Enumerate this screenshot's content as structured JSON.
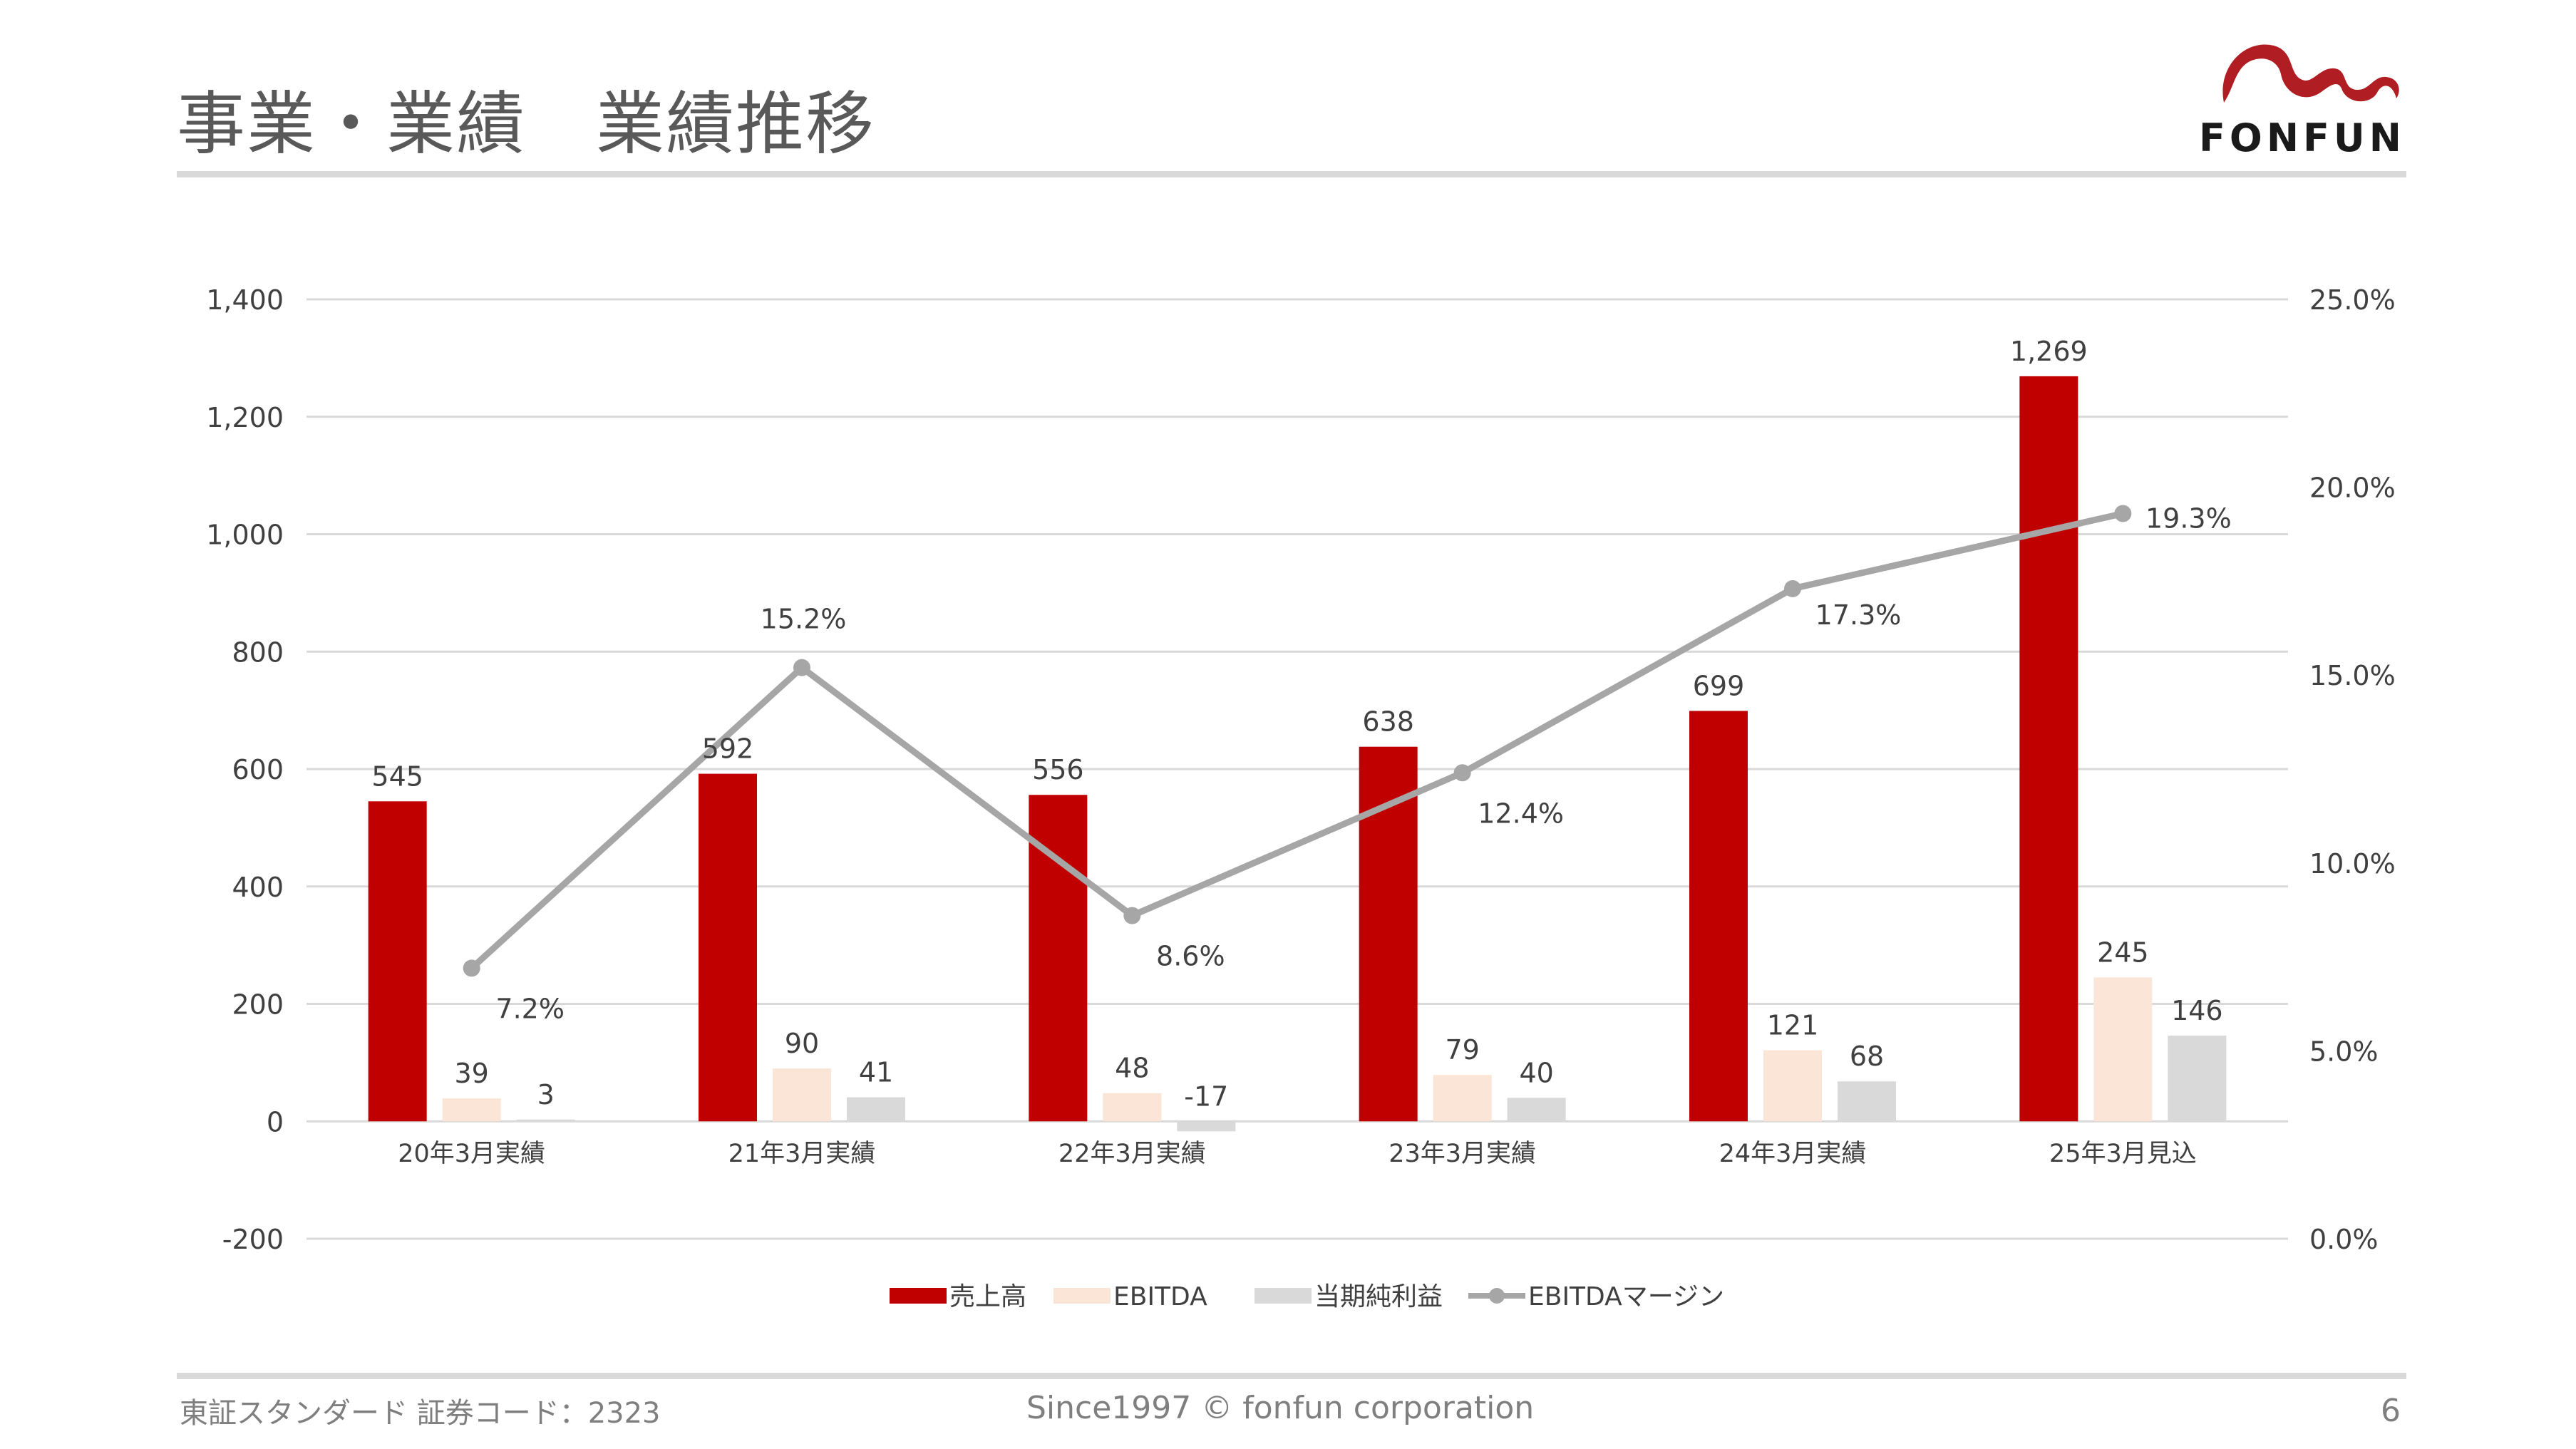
{
  "header": {
    "title": "事業・業績　業績推移",
    "logo_text": "FONFUN"
  },
  "footer": {
    "exchange": "東証スタンダード 証券コード：2323",
    "copyright": "Since1997 © fonfun corporation",
    "page_number": "6"
  },
  "colors": {
    "revenue": "#c00000",
    "ebitda": "#fbe5d6",
    "net_income": "#d9d9d9",
    "margin": "#a6a6a6",
    "logo": "#b01e23"
  },
  "chart_data": {
    "type": "bar",
    "categories": [
      "20年3月実績",
      "21年3月実績",
      "22年3月実績",
      "23年3月実績",
      "24年3月実績",
      "25年3月見込"
    ],
    "series": [
      {
        "name": "売上高",
        "type": "bar",
        "axis": "left",
        "values": [
          545,
          592,
          556,
          638,
          699,
          1269
        ],
        "labels": [
          "545",
          "592",
          "556",
          "638",
          "699",
          "1,269"
        ]
      },
      {
        "name": "EBITDA",
        "type": "bar",
        "axis": "left",
        "values": [
          39,
          90,
          48,
          79,
          121,
          245
        ],
        "labels": [
          "39",
          "90",
          "48",
          "79",
          "121",
          "245"
        ]
      },
      {
        "name": "当期純利益",
        "type": "bar",
        "axis": "left",
        "values": [
          3,
          41,
          -17,
          40,
          68,
          146
        ],
        "labels": [
          "3",
          "41",
          "-17",
          "40",
          "68",
          "146"
        ]
      },
      {
        "name": "EBITDAマージン",
        "type": "line",
        "axis": "right",
        "values": [
          7.2,
          15.2,
          8.6,
          12.4,
          17.3,
          19.3
        ],
        "labels": [
          "7.2%",
          "15.2%",
          "8.6%",
          "12.4%",
          "17.3%",
          "19.3%"
        ]
      }
    ],
    "y_left": {
      "min": -200,
      "max": 1400,
      "ticks": [
        -200,
        0,
        200,
        400,
        600,
        800,
        1000,
        1200,
        1400
      ],
      "tick_labels": [
        "-200",
        "0",
        "200",
        "400",
        "600",
        "800",
        "1,000",
        "1,200",
        "1,400"
      ]
    },
    "y_right": {
      "min": 0,
      "max": 25,
      "ticks": [
        0,
        5,
        10,
        15,
        20,
        25
      ],
      "tick_labels": [
        "0.0%",
        "5.0%",
        "10.0%",
        "15.0%",
        "20.0%",
        "25.0%"
      ]
    },
    "grid": true,
    "legend_position": "bottom"
  }
}
